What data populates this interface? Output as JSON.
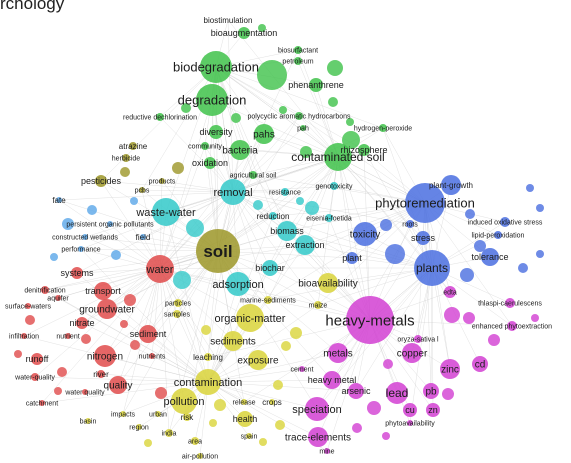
{
  "header_fragment": "rchology",
  "colors": {
    "green": "#3fc24a",
    "cyan": "#33c9c9",
    "blue": "#4a6ee0",
    "red": "#e04b4b",
    "magenta": "#d23fd2",
    "yellow": "#d9d43a",
    "olive": "#9c9628",
    "sky": "#5aa6e8",
    "link": "#c8c8c8"
  },
  "terms": {
    "biostimulation": "biostimulation",
    "bioaugmentation": "bioaugmentation",
    "biosurfactant": "biosurfactant",
    "petroleum": "petroleum",
    "biodegradation": "biodegradation",
    "phenanthrene": "phenanthrene",
    "degradation": "degradation",
    "reductive_dechlorination": "reductive dechlorination",
    "polycyclic_aromatic_hydrocarbons": "polycyclic aromatic hydrocarbons",
    "pah": "pah",
    "hydrogen_peroxide": "hydrogen-peroxide",
    "diversity": "diversity",
    "pahs": "pahs",
    "atrazine": "atrazine",
    "community": "community",
    "bacteria": "bacteria",
    "rhizosphere": "rhizosphere",
    "herbicide": "herbicide",
    "contaminated_soil": "contaminated soil",
    "oxidation": "oxidation",
    "agricultural_soil": "agricultural soil",
    "plant_growth": "plant-growth",
    "pesticides": "pesticides",
    "products": "products",
    "pcbs": "pcbs",
    "genotoxicity": "genotoxicity",
    "removal": "removal",
    "resistance": "resistance",
    "fate": "fate",
    "phytoremediation": "phytoremediation",
    "waste_water": "waste-water",
    "persistent_organic_pollutants": "persistent organic pollutants",
    "reduction": "reduction",
    "eisenia_foetida": "eisenia-foetida",
    "roots": "roots",
    "induced_oxidative_stress": "induced oxidative stress",
    "constructed_wetlands": "constructed wetlands",
    "field": "field",
    "biomass": "biomass",
    "toxicity": "toxicity",
    "stress": "stress",
    "lipid_peroxidation": "lipid-peroxidation",
    "performance": "performance",
    "soil": "soil",
    "extraction": "extraction",
    "tolerance": "tolerance",
    "plant": "plant",
    "water": "water",
    "biochar": "biochar",
    "plants": "plants",
    "systems": "systems",
    "bioavailability": "bioavailability",
    "denitrification": "denitrification",
    "transport": "transport",
    "aquifer": "aquifer",
    "adsorption": "adsorption",
    "edta": "edta",
    "surface_waters": "surface-waters",
    "groundwater": "groundwater",
    "particles": "particles",
    "marine_sediments": "marine-sediments",
    "thlaspi_caerulescens": "thlaspi-caerulescens",
    "nitrate": "nitrate",
    "samples": "samples",
    "maize": "maize",
    "heavy_metals": "heavy-metals",
    "infiltration": "infiltration",
    "nutrient": "nutrient",
    "sediment": "sediment",
    "organic_matter": "organic-matter",
    "enhanced_phytoextraction": "enhanced phytoextraction",
    "sediments": "sediments",
    "oryza_sativa": "oryza-sativa l",
    "runoff": "runoff",
    "nitrogen": "nitrogen",
    "nutrients": "nutrients",
    "leaching": "leaching",
    "exposure": "exposure",
    "metals": "metals",
    "copper": "copper",
    "zinc": "zinc",
    "cd": "cd",
    "water_quality": "water-quality",
    "river": "river",
    "quality": "quality",
    "cement": "cement",
    "heavy_metal": "heavy metal",
    "contamination": "contamination",
    "arsenic": "arsenic",
    "lead": "lead",
    "pb": "pb",
    "water_quality_2": "water quality",
    "catchment": "catchment",
    "pollution": "pollution",
    "release": "release",
    "crops": "crops",
    "speciation": "speciation",
    "cu": "cu",
    "zn": "zn",
    "basin": "basin",
    "impacts": "impacts",
    "urban": "urban",
    "risk": "risk",
    "health": "health",
    "phytoavailability": "phytoavailability",
    "region": "region",
    "india": "india",
    "spain": "spain",
    "trace_elements": "trace-elements",
    "area": "area",
    "mine": "mine",
    "air_pollution": "air-pollution"
  }
}
